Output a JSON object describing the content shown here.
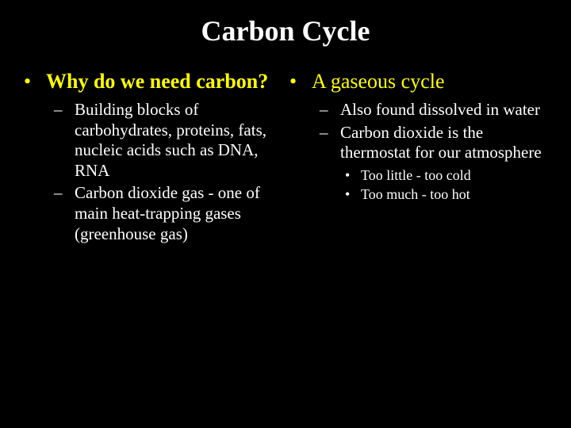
{
  "colors": {
    "background": "#000000",
    "title": "#ffffff",
    "level1": "#ffff00",
    "level2": "#ffffff",
    "level3": "#ffffff"
  },
  "typography": {
    "title_fontsize": 36,
    "level1_fontsize": 26,
    "level2_fontsize": 21,
    "level3_fontsize": 18,
    "font_family": "Times New Roman"
  },
  "title": "Carbon Cycle",
  "left": {
    "heading": "Why do we need carbon?",
    "sub": [
      "Building blocks of carbohydrates, proteins, fats, nucleic acids such as DNA, RNA",
      "Carbon dioxide gas - one of main heat-trapping gases (greenhouse gas)"
    ]
  },
  "right": {
    "heading": "A gaseous cycle",
    "sub": [
      "Also found dissolved in water",
      "Carbon dioxide is the thermostat for our atmosphere"
    ],
    "subsub": [
      "Too little - too cold",
      "Too much - too hot"
    ]
  },
  "bullets": {
    "l1": "•",
    "l2": "–",
    "l3": "•"
  }
}
